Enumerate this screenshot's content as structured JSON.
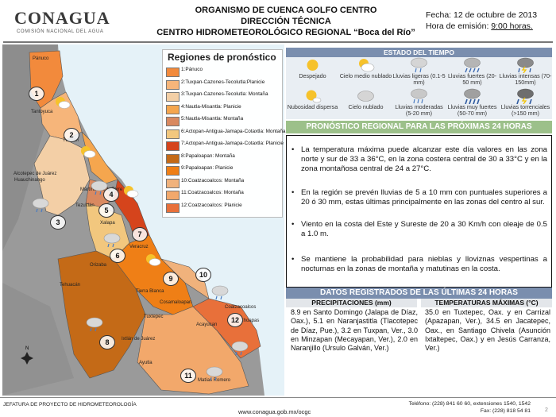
{
  "header": {
    "logo_text": "CONAGUA",
    "logo_subtitle": "COMISIÓN NACIONAL DEL AGUA",
    "title_line1": "ORGANISMO DE CUENCA GOLFO CENTRO",
    "title_line2": "DIRECCIÓN TÉCNICA",
    "title_line3": "CENTRO HIDROMETEOROLÓGICO REGIONAL “Boca del Río”",
    "fecha": "Fecha: 12 de octubre de 2013",
    "emision_label": "Hora de emisión: ",
    "emision_value": "9:00 horas."
  },
  "legend": {
    "title": "Regiones de pronóstico",
    "items": [
      {
        "label": "1:Pánuco",
        "color": "#f28a3c"
      },
      {
        "label": "2:Tuxpan-Cazones-Tecolutla:Planicie",
        "color": "#f6b57a"
      },
      {
        "label": "3:Tuxpan-Cazones-Tecolutla: Montaña",
        "color": "#f3cfa6"
      },
      {
        "label": "4:Nautla-Misantla: Planicie",
        "color": "#f5a64e"
      },
      {
        "label": "5:Nautla-Misantla: Montaña",
        "color": "#d98960"
      },
      {
        "label": "6:Actopan-Antigua-Jamapa-Cotaxtla: Montaña",
        "color": "#f2c77e"
      },
      {
        "label": "7:Actopan-Antigua-Jamapa-Cotaxtla: Planicie",
        "color": "#d5441c"
      },
      {
        "label": "8:Papaloapan: Montaña",
        "color": "#c46a17"
      },
      {
        "label": "9:Papaloapan: Planicie",
        "color": "#ef7f16"
      },
      {
        "label": "10:Coatzacoalcos: Montaña",
        "color": "#f0b27c"
      },
      {
        "label": "11:Coatzacoalcos: Montaña",
        "color": "#f2a86b"
      },
      {
        "label": "12:Coatzacoalcos: Planicie",
        "color": "#e8703a"
      }
    ]
  },
  "map": {
    "cities": [
      "Pánuco",
      "Tantoyuca",
      "Tuxpan",
      "Alcotepec de Juárez",
      "Huauchinango",
      "Martínez de la Torre",
      "Tezuitlán",
      "Xalapa",
      "Veracruz",
      "Orizaba",
      "Tehuacán",
      "Tierra Blanca",
      "Cosamaloapan",
      "Tuxtepec",
      "Acayucan",
      "Coatzacoalcos",
      "Las Choapas",
      "Ixtlán de Juárez",
      "Ayutla",
      "Matías Romero"
    ],
    "region_numbers": [
      "1",
      "2",
      "3",
      "4",
      "5",
      "6",
      "7",
      "8",
      "9",
      "10",
      "11",
      "12"
    ]
  },
  "estado": {
    "title": "ESTADO DEL TIEMPO",
    "row1": [
      {
        "label": "Despejado",
        "icon": "sun-icon"
      },
      {
        "label": "Cielo medio nublado",
        "icon": "sun-cloud-icon"
      },
      {
        "label": "Lluvias ligeras (0.1-5 mm)",
        "icon": "light-rain-icon"
      },
      {
        "label": "Lluvias fuertes (20-50 mm)",
        "icon": "heavy-rain-icon"
      },
      {
        "label": "Lluvias intensas (70-150mm)",
        "icon": "storm-rain-icon"
      }
    ],
    "row2": [
      {
        "label": "Nubosidad dispersa",
        "icon": "sun-small-cloud-icon"
      },
      {
        "label": "Cielo nublado",
        "icon": "cloud-icon"
      },
      {
        "label": "Lluvias moderadas (5-20 mm)",
        "icon": "moderate-rain-icon"
      },
      {
        "label": "Lluvias muy fuertes (50-70 mm)",
        "icon": "very-heavy-rain-icon"
      },
      {
        "label": "Lluvias torrenciales (>150 mm)",
        "icon": "torrential-rain-icon"
      }
    ]
  },
  "pronostico": {
    "title": "PRONÓSTICO REGIONAL PARA LAS PRÓXIMAS 24 HORAS",
    "bullets": [
      "La temperatura máxima puede alcanzar este día valores en las zona norte y sur de 33 a 36°C, en la zona costera central de 30 a 33°C y en la zona montañosa central de 24 a 27°C.",
      "En la región se prevén lluvias de 5 a 10 mm con puntuales superiores a 20 ó 30 mm, estas últimas principalmente en las zonas del centro al sur.",
      "Viento en la costa del Este y Sureste de 20 a 30 Km/h con oleaje de 0.5 a 1.0 m.",
      "Se mantiene la probabilidad para nieblas y lloviznas vespertinas a nocturnas en la zonas de montaña y matutinas en la costa."
    ]
  },
  "datos": {
    "title": "DATOS REGISTRADOS DE LAS ÚLTIMAS 24 HORAS",
    "prec_header": "PRECIPITACIONES (mm)",
    "temp_header": "TEMPERATURAS MÁXIMAS (°C)",
    "prec_text": "8.9 en Santo Domingo (Jalapa de Díaz, Oax.), 5.1 en Naranjastitla (Tlacotepec de Díaz, Pue.), 3.2 en Tuxpan, Ver., 3.0 en Minzapan (Mecayapan, Ver.), 2.0 en Naranjillo (Ursulo Galván, Ver.)",
    "temp_text": "35.0 en Tuxtepec, Oax. y en Carrizal (Apazapan, Ver.), 34.5 en Jacatepec, Oax., en Santiago Chivela (Asunción Ixtaltepec, Oax.) y en Jesús Carranza, Ver.)"
  },
  "footer": {
    "left": "JEFATURA DE PROYECTO DE HIDROMETEOROLOGÍA",
    "url": "www.conagua.gob.mx/ocgc",
    "tel1": "Teléfono: (228) 841 60 60, extensiones 1540, 1542",
    "tel2": "Fax: (228) 818 54 81",
    "page": "2"
  }
}
